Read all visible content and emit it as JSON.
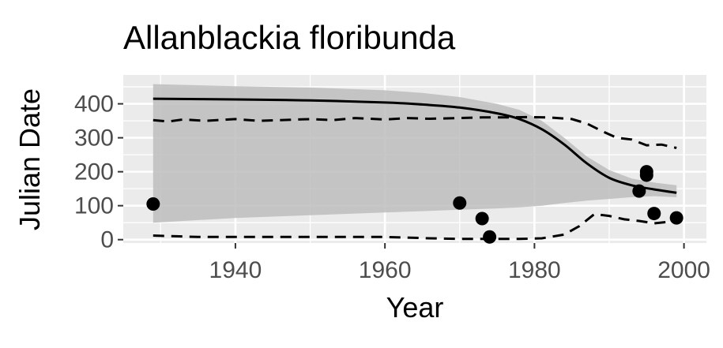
{
  "chart_data": {
    "type": "scatter",
    "title": "Allanblackia floribunda",
    "xlabel": "Year",
    "ylabel": "Julian Date",
    "xlim": [
      1925,
      2003
    ],
    "ylim": [
      -10,
      485
    ],
    "x_ticks": [
      1940,
      1960,
      1980,
      2000
    ],
    "y_ticks": [
      0,
      100,
      200,
      300,
      400
    ],
    "grid": true,
    "legend": "none",
    "colors": {
      "panel_background": "#ebebeb",
      "grid": "#ffffff",
      "ribbon": "#bdbdbd",
      "line": "#000000",
      "points": "#000000",
      "tick_labels": "#4d4d4d"
    },
    "points": {
      "x": [
        1929,
        1970,
        1973,
        1974,
        1994,
        1995,
        1995,
        1996,
        1999
      ],
      "y": [
        105,
        108,
        62,
        8,
        143,
        200,
        190,
        77,
        64
      ]
    },
    "fit_line": {
      "x": [
        1929,
        1940,
        1950,
        1960,
        1965,
        1970,
        1975,
        1978,
        1981,
        1984,
        1987,
        1990,
        1993,
        1996,
        1999
      ],
      "y": [
        415,
        413,
        410,
        404,
        398,
        389,
        372,
        355,
        325,
        280,
        225,
        182,
        160,
        148,
        138
      ]
    },
    "confidence_band": {
      "x": [
        1929,
        1940,
        1950,
        1960,
        1965,
        1970,
        1975,
        1978,
        1981,
        1984,
        1987,
        1990,
        1993,
        1996,
        1999
      ],
      "upper": [
        458,
        452,
        448,
        440,
        432,
        420,
        400,
        382,
        350,
        300,
        245,
        205,
        180,
        168,
        160
      ],
      "lower": [
        50,
        64,
        72,
        80,
        84,
        88,
        92,
        95,
        100,
        108,
        115,
        120,
        125,
        128,
        125
      ]
    },
    "upper_quantile": {
      "x": [
        1929,
        1931,
        1933,
        1936,
        1940,
        1943,
        1946,
        1950,
        1953,
        1956,
        1960,
        1963,
        1966,
        1970,
        1973,
        1976,
        1979,
        1982,
        1985,
        1987,
        1989,
        1991,
        1993,
        1995,
        1997,
        1999
      ],
      "y": [
        352,
        348,
        354,
        350,
        355,
        350,
        352,
        355,
        352,
        358,
        354,
        358,
        356,
        358,
        360,
        360,
        361,
        360,
        355,
        342,
        320,
        300,
        295,
        278,
        280,
        270
      ]
    },
    "lower_quantile": {
      "x": [
        1929,
        1932,
        1935,
        1940,
        1945,
        1950,
        1955,
        1960,
        1963,
        1966,
        1970,
        1974,
        1978,
        1981,
        1984,
        1986,
        1988,
        1990,
        1992,
        1994,
        1996,
        1999
      ],
      "y": [
        12,
        10,
        8,
        8,
        8,
        8,
        8,
        8,
        6,
        4,
        2,
        2,
        2,
        4,
        15,
        40,
        75,
        70,
        60,
        55,
        48,
        55
      ]
    }
  }
}
